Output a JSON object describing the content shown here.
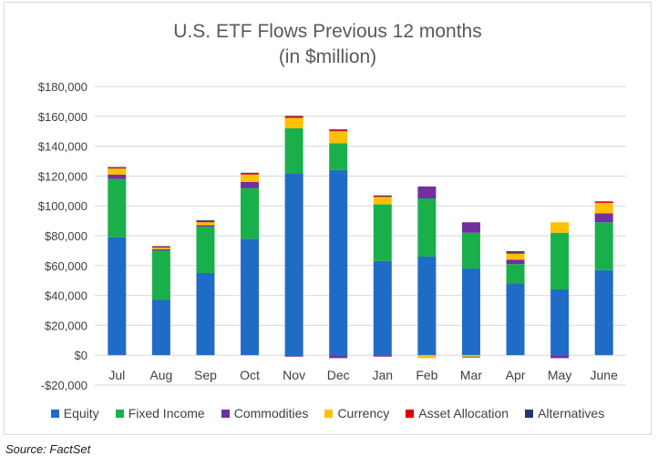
{
  "chart_data": {
    "type": "bar",
    "stacked": true,
    "title": "U.S. ETF Flows Previous 12 months",
    "subtitle": "(in $million)",
    "categories": [
      "Jul",
      "Aug",
      "Sep",
      "Oct",
      "Nov",
      "Dec",
      "Jan",
      "Feb",
      "Mar",
      "Apr",
      "May",
      "June"
    ],
    "series": [
      {
        "name": "Equity",
        "color": "#1f6cc6",
        "values": [
          79000,
          37000,
          55000,
          78000,
          122000,
          124000,
          63000,
          66000,
          58000,
          48000,
          44000,
          57000
        ]
      },
      {
        "name": "Fixed Income",
        "color": "#19b04b",
        "values": [
          39000,
          33000,
          31000,
          34000,
          30000,
          18000,
          38000,
          39000,
          24000,
          13000,
          38000,
          32000
        ]
      },
      {
        "name": "Commodities",
        "color": "#7030a0",
        "values": [
          3000,
          1000,
          1000,
          4000,
          -1000,
          -2000,
          -1000,
          8000,
          7000,
          3000,
          -2000,
          6000
        ]
      },
      {
        "name": "Currency",
        "color": "#ffc000",
        "values": [
          4000,
          1000,
          2000,
          5000,
          7000,
          8000,
          5000,
          -2000,
          -1000,
          4000,
          7000,
          7000
        ]
      },
      {
        "name": "Asset Allocation",
        "color": "#e00000",
        "values": [
          500,
          500,
          700,
          700,
          1000,
          700,
          500,
          0,
          0,
          600,
          0,
          600
        ]
      },
      {
        "name": "Alternatives",
        "color": "#1f3864",
        "values": [
          500,
          500,
          600,
          500,
          300,
          500,
          500,
          0,
          -500,
          1000,
          0,
          400
        ]
      }
    ],
    "ylim": [
      -20000,
      180000
    ],
    "yticks": [
      -20000,
      0,
      20000,
      40000,
      60000,
      80000,
      100000,
      120000,
      140000,
      160000,
      180000
    ],
    "ytick_labels": [
      "-$20,000",
      "$0",
      "$20,000",
      "$40,000",
      "$60,000",
      "$80,000",
      "$100,000",
      "$120,000",
      "$140,000",
      "$160,000",
      "$180,000"
    ],
    "grid": true,
    "legend_position": "bottom",
    "xlabel": "",
    "ylabel": ""
  },
  "source_note": "Source: FactSet"
}
